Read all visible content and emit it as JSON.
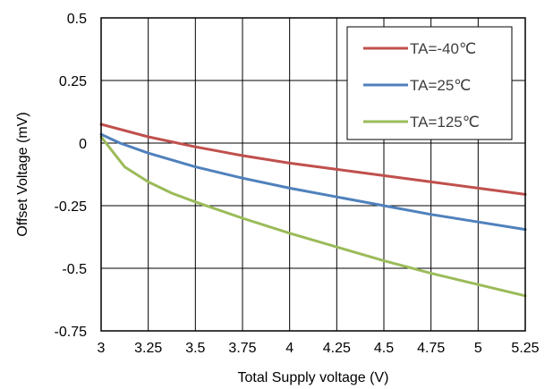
{
  "chart_data": {
    "type": "line",
    "xlabel": "Total Supply voltage (V)",
    "ylabel": "Offset Voltage (mV)",
    "xlim": [
      3,
      5.25
    ],
    "ylim": [
      -0.75,
      0.5
    ],
    "x_ticks": [
      3,
      3.25,
      3.5,
      3.75,
      4,
      4.25,
      4.5,
      4.75,
      5,
      5.25
    ],
    "x_tick_labels": [
      "3",
      "3.25",
      "3.5",
      "3.75",
      "4",
      "4.25",
      "4.5",
      "4.75",
      "5",
      "5.25"
    ],
    "y_ticks": [
      0.5,
      0.25,
      0,
      -0.25,
      -0.5,
      -0.75
    ],
    "y_tick_labels": [
      "0.5",
      "0.25",
      "0",
      "-0.25",
      "-0.5",
      "-0.75"
    ],
    "grid": true,
    "legend_position": "top-right",
    "series": [
      {
        "name": "TA=-40℃",
        "color": "#c0504d",
        "x": [
          3,
          3.25,
          3.5,
          3.75,
          4,
          4.25,
          4.5,
          4.75,
          5,
          5.25
        ],
        "y": [
          0.075,
          0.025,
          -0.015,
          -0.05,
          -0.08,
          -0.105,
          -0.13,
          -0.155,
          -0.18,
          -0.205
        ]
      },
      {
        "name": "TA=25℃",
        "color": "#4f81bd",
        "x": [
          3,
          3.1,
          3.25,
          3.5,
          3.75,
          4,
          4.25,
          4.5,
          4.75,
          5,
          5.25
        ],
        "y": [
          0.035,
          0.0,
          -0.04,
          -0.095,
          -0.14,
          -0.18,
          -0.215,
          -0.25,
          -0.285,
          -0.315,
          -0.345
        ]
      },
      {
        "name": "TA=125℃",
        "color": "#9bbb59",
        "x": [
          3,
          3.125,
          3.25,
          3.375,
          3.5,
          3.75,
          4,
          4.25,
          4.5,
          4.75,
          5,
          5.25
        ],
        "y": [
          0.025,
          -0.095,
          -0.155,
          -0.2,
          -0.235,
          -0.3,
          -0.36,
          -0.415,
          -0.47,
          -0.52,
          -0.565,
          -0.61
        ]
      }
    ]
  }
}
